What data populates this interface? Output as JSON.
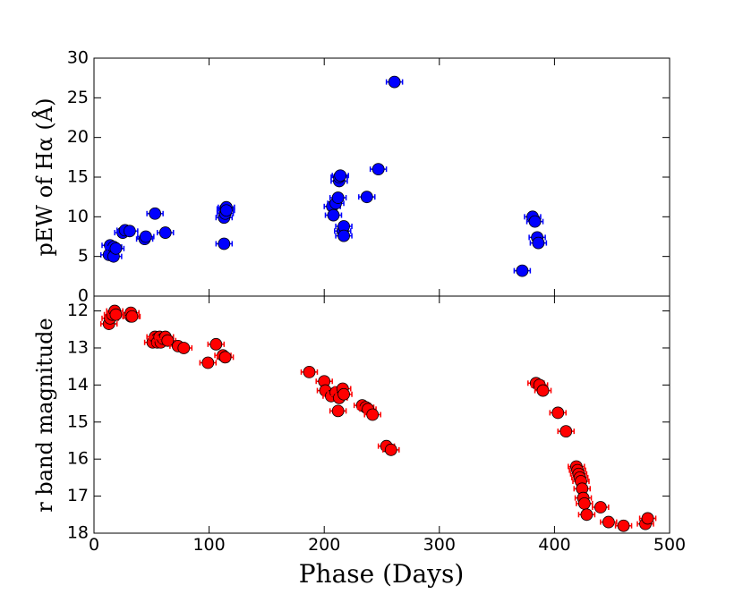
{
  "chart_data": [
    {
      "type": "scatter",
      "ylabel": "pEW of Hα (Å)",
      "ylim": [
        0,
        30
      ],
      "y_ticks": [
        "0",
        "5",
        "10",
        "15",
        "20",
        "25",
        "30"
      ],
      "marker_color": "#0000ff",
      "errorbar_color": "#0000ff",
      "x": [
        13,
        14,
        17,
        17,
        19,
        25,
        27,
        31,
        44,
        45,
        53,
        62,
        113,
        113,
        114,
        114,
        115,
        115,
        207,
        208,
        210,
        212,
        213,
        213,
        214,
        216,
        217,
        217,
        237,
        247,
        261,
        372,
        381,
        383,
        385,
        386
      ],
      "y": [
        5.2,
        6.4,
        6.2,
        5.0,
        6.0,
        8.0,
        8.3,
        8.2,
        7.2,
        7.5,
        10.4,
        8.0,
        6.6,
        9.9,
        10.4,
        11.0,
        11.2,
        10.8,
        11.3,
        10.2,
        11.7,
        12.4,
        14.5,
        15.0,
        15.2,
        8.2,
        8.8,
        7.6,
        12.5,
        16.0,
        27.0,
        3.2,
        10.0,
        9.4,
        7.4,
        6.7
      ]
    },
    {
      "type": "scatter",
      "ylabel": "r band magnitude",
      "ylim": [
        18,
        11.6
      ],
      "y_ticks": [
        "12",
        "13",
        "14",
        "15",
        "16",
        "17",
        "18"
      ],
      "marker_color": "#ff0000",
      "errorbar_color": "#ff0000",
      "x": [
        13,
        14,
        16,
        18,
        19,
        32,
        32,
        33,
        51,
        53,
        55,
        55,
        57,
        58,
        60,
        62,
        64,
        73,
        78,
        99,
        106,
        112,
        114,
        187,
        200,
        201,
        206,
        210,
        212,
        213,
        216,
        217,
        233,
        236,
        238,
        242,
        254,
        258,
        384,
        387,
        390,
        403,
        410,
        419,
        420,
        421,
        422,
        423,
        424,
        425,
        426,
        428,
        440,
        447,
        460,
        479,
        481
      ],
      "y": [
        12.35,
        12.2,
        12.1,
        12.0,
        12.1,
        12.15,
        12.05,
        12.15,
        12.85,
        12.7,
        12.75,
        12.85,
        12.7,
        12.85,
        12.75,
        12.7,
        12.8,
        12.95,
        13.0,
        13.4,
        12.9,
        13.2,
        13.25,
        13.65,
        13.9,
        14.15,
        14.3,
        14.2,
        14.7,
        14.35,
        14.1,
        14.25,
        14.55,
        14.6,
        14.65,
        14.8,
        15.65,
        15.75,
        13.95,
        14.0,
        14.15,
        14.75,
        15.25,
        16.2,
        16.3,
        16.4,
        16.5,
        16.6,
        16.8,
        17.05,
        17.2,
        17.5,
        17.3,
        17.7,
        17.8,
        17.75,
        17.6
      ]
    }
  ],
  "shared_x": {
    "xlabel": "Phase (Days)",
    "xlim": [
      0,
      500
    ],
    "x_ticks": [
      "0",
      "100",
      "200",
      "300",
      "400",
      "500"
    ]
  }
}
